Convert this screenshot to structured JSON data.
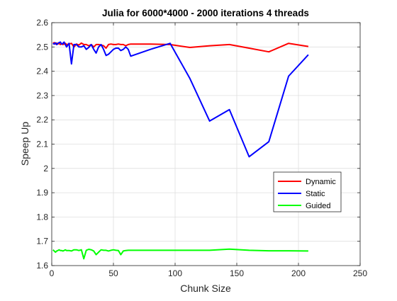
{
  "chart_data": {
    "type": "line",
    "title": "Julia for 6000*4000 - 2000 iterations 4 threads",
    "xlabel": "Chunk Size",
    "ylabel": "Speep Up",
    "xlim": [
      0,
      250
    ],
    "ylim": [
      1.6,
      2.6
    ],
    "x_ticks": [
      0,
      50,
      100,
      150,
      200,
      250
    ],
    "y_ticks": [
      1.6,
      1.7,
      1.8,
      1.9,
      2.0,
      2.1,
      2.2,
      2.3,
      2.4,
      2.5,
      2.6
    ],
    "x_tick_labels": [
      "0",
      "50",
      "100",
      "150",
      "200",
      "250"
    ],
    "y_tick_labels": [
      "1.6",
      "1.7",
      "1.8",
      "1.9",
      "2",
      "2.1",
      "2.2",
      "2.3",
      "2.4",
      "2.5",
      "2.6"
    ],
    "grid": true,
    "legend_position": "right",
    "series": [
      {
        "name": "Dynamic",
        "color": "#ff0000",
        "x": [
          1,
          2,
          3,
          4,
          5,
          6,
          7,
          8,
          9,
          10,
          11,
          12,
          14,
          16,
          18,
          20,
          22,
          24,
          26,
          28,
          30,
          32,
          34,
          36,
          38,
          40,
          42,
          44,
          46,
          48,
          50,
          52,
          54,
          56,
          58,
          60,
          62,
          64,
          80,
          96,
          112,
          128,
          144,
          160,
          176,
          192,
          208
        ],
        "y": [
          2.515,
          2.518,
          2.512,
          2.516,
          2.512,
          2.515,
          2.51,
          2.513,
          2.51,
          2.512,
          2.515,
          2.51,
          2.512,
          2.515,
          2.5,
          2.512,
          2.508,
          2.516,
          2.51,
          2.51,
          2.505,
          2.51,
          2.5,
          2.51,
          2.51,
          2.508,
          2.505,
          2.495,
          2.51,
          2.512,
          2.51,
          2.51,
          2.512,
          2.51,
          2.51,
          2.505,
          2.51,
          2.512,
          2.512,
          2.51,
          2.498,
          2.505,
          2.51,
          2.495,
          2.48,
          2.515,
          2.502
        ]
      },
      {
        "name": "Static",
        "color": "#0000ff",
        "x": [
          1,
          2,
          3,
          4,
          5,
          6,
          7,
          8,
          9,
          10,
          11,
          12,
          14,
          16,
          18,
          20,
          22,
          24,
          26,
          28,
          30,
          32,
          34,
          36,
          38,
          40,
          42,
          44,
          46,
          48,
          50,
          52,
          54,
          56,
          58,
          60,
          62,
          64,
          80,
          96,
          112,
          128,
          144,
          160,
          176,
          192,
          208
        ],
        "y": [
          2.515,
          2.512,
          2.517,
          2.51,
          2.515,
          2.518,
          2.52,
          2.512,
          2.515,
          2.52,
          2.51,
          2.5,
          2.515,
          2.43,
          2.51,
          2.51,
          2.5,
          2.5,
          2.505,
          2.49,
          2.498,
          2.51,
          2.49,
          2.475,
          2.5,
          2.51,
          2.49,
          2.465,
          2.47,
          2.48,
          2.49,
          2.495,
          2.495,
          2.485,
          2.49,
          2.5,
          2.49,
          2.462,
          2.49,
          2.515,
          2.37,
          2.195,
          2.242,
          2.048,
          2.11,
          2.38,
          2.468
        ]
      },
      {
        "name": "Guided",
        "color": "#00ff00",
        "x": [
          1,
          2,
          3,
          4,
          5,
          6,
          7,
          8,
          9,
          10,
          11,
          12,
          14,
          16,
          18,
          20,
          22,
          24,
          26,
          28,
          30,
          32,
          34,
          36,
          38,
          40,
          42,
          44,
          46,
          48,
          50,
          52,
          54,
          56,
          58,
          60,
          62,
          64,
          80,
          96,
          112,
          128,
          144,
          160,
          176,
          192,
          208
        ],
        "y": [
          1.665,
          1.66,
          1.655,
          1.66,
          1.662,
          1.665,
          1.662,
          1.662,
          1.66,
          1.662,
          1.665,
          1.662,
          1.662,
          1.66,
          1.665,
          1.665,
          1.662,
          1.665,
          1.628,
          1.663,
          1.667,
          1.665,
          1.66,
          1.645,
          1.655,
          1.665,
          1.663,
          1.663,
          1.66,
          1.663,
          1.665,
          1.663,
          1.662,
          1.645,
          1.66,
          1.662,
          1.663,
          1.663,
          1.663,
          1.663,
          1.663,
          1.663,
          1.668,
          1.663,
          1.661,
          1.661,
          1.66
        ]
      }
    ]
  }
}
